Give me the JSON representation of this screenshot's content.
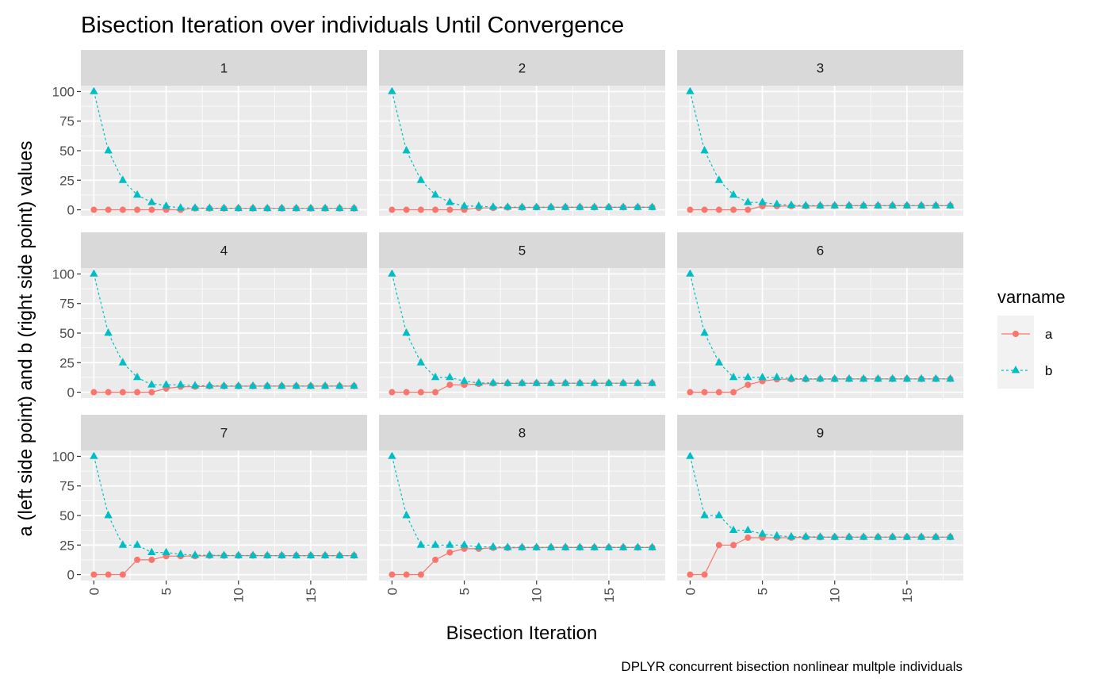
{
  "chart_data": {
    "type": "line",
    "title": "Bisection Iteration over individuals Until Convergence",
    "xlabel": "Bisection Iteration",
    "ylabel": "a (left side point) and b (right side point) values",
    "caption": "DPLYR concurrent bisection nonlinear multple individuals",
    "xlim": [
      -0.9,
      18.9
    ],
    "ylim": [
      -5,
      105
    ],
    "x_ticks": [
      0,
      5,
      10,
      15
    ],
    "y_ticks": [
      0,
      25,
      50,
      75,
      100
    ],
    "x": [
      0,
      1,
      2,
      3,
      4,
      5,
      6,
      7,
      8,
      9,
      10,
      11,
      12,
      13,
      14,
      15,
      16,
      17,
      18
    ],
    "legend": {
      "title": "varname",
      "position": "right",
      "entries": [
        {
          "label": "a",
          "color": "#F8766D",
          "marker": "circle",
          "line": "solid"
        },
        {
          "label": "b",
          "color": "#00BFC4",
          "marker": "triangle",
          "line": "dashed"
        }
      ]
    },
    "grid": true,
    "facets": [
      {
        "label": "1",
        "series": [
          {
            "name": "a",
            "values": [
              0,
              0,
              0,
              0,
              0,
              0,
              0,
              1.2,
              1.2,
              1.2,
              1.2,
              1.2,
              1.2,
              1.2,
              1.2,
              1.2,
              1.2,
              1.2,
              1.2
            ]
          },
          {
            "name": "b",
            "values": [
              100,
              50,
              25,
              12.5,
              6.25,
              3.13,
              1.56,
              1.56,
              1.4,
              1.3,
              1.25,
              1.22,
              1.2,
              1.2,
              1.2,
              1.2,
              1.2,
              1.2,
              1.2
            ]
          }
        ]
      },
      {
        "label": "2",
        "series": [
          {
            "name": "a",
            "values": [
              0,
              0,
              0,
              0,
              0,
              0,
              1.56,
              1.56,
              1.95,
              1.95,
              2.05,
              2.1,
              2.12,
              2.13,
              2.13,
              2.13,
              2.13,
              2.13,
              2.13
            ]
          },
          {
            "name": "b",
            "values": [
              100,
              50,
              25,
              12.5,
              6.25,
              3.13,
              3.13,
              2.34,
              2.34,
              2.15,
              2.15,
              2.15,
              2.15,
              2.15,
              2.14,
              2.14,
              2.14,
              2.14,
              2.14
            ]
          }
        ]
      },
      {
        "label": "3",
        "series": [
          {
            "name": "a",
            "values": [
              0,
              0,
              0,
              0,
              0,
              3.13,
              3.13,
              3.13,
              3.13,
              3.32,
              3.42,
              3.47,
              3.49,
              3.49,
              3.49,
              3.49,
              3.49,
              3.49,
              3.49
            ]
          },
          {
            "name": "b",
            "values": [
              100,
              50,
              25,
              12.5,
              6.25,
              6.25,
              4.69,
              3.91,
              3.52,
              3.52,
              3.52,
              3.52,
              3.52,
              3.5,
              3.5,
              3.5,
              3.5,
              3.5,
              3.5
            ]
          }
        ]
      },
      {
        "label": "4",
        "series": [
          {
            "name": "a",
            "values": [
              0,
              0,
              0,
              0,
              0,
              3.13,
              4.69,
              4.69,
              5.08,
              5.08,
              5.08,
              5.13,
              5.15,
              5.16,
              5.16,
              5.16,
              5.16,
              5.16,
              5.16
            ]
          },
          {
            "name": "b",
            "values": [
              100,
              50,
              25,
              12.5,
              6.25,
              6.25,
              6.25,
              5.47,
              5.47,
              5.27,
              5.18,
              5.18,
              5.18,
              5.18,
              5.17,
              5.17,
              5.17,
              5.17,
              5.17
            ]
          }
        ]
      },
      {
        "label": "5",
        "series": [
          {
            "name": "a",
            "values": [
              0,
              0,
              0,
              0,
              6.25,
              6.25,
              7.03,
              7.42,
              7.42,
              7.52,
              7.57,
              7.59,
              7.59,
              7.6,
              7.6,
              7.6,
              7.6,
              7.6,
              7.6
            ]
          },
          {
            "name": "b",
            "values": [
              100,
              50,
              25,
              12.5,
              12.5,
              9.38,
              7.81,
              7.81,
              7.62,
              7.62,
              7.62,
              7.62,
              7.61,
              7.61,
              7.61,
              7.61,
              7.61,
              7.61,
              7.61
            ]
          }
        ]
      },
      {
        "label": "6",
        "series": [
          {
            "name": "a",
            "values": [
              0,
              0,
              0,
              0,
              6.25,
              9.38,
              10.94,
              10.94,
              10.94,
              11.13,
              11.13,
              11.18,
              11.2,
              11.21,
              11.21,
              11.21,
              11.21,
              11.21,
              11.21
            ]
          },
          {
            "name": "b",
            "values": [
              100,
              50,
              25,
              12.5,
              12.5,
              12.5,
              12.5,
              11.72,
              11.33,
              11.33,
              11.23,
              11.23,
              11.23,
              11.22,
              11.22,
              11.22,
              11.22,
              11.22,
              11.22
            ]
          }
        ]
      },
      {
        "label": "7",
        "series": [
          {
            "name": "a",
            "values": [
              0,
              0,
              0,
              12.5,
              12.5,
              15.63,
              15.63,
              15.63,
              16.02,
              16.02,
              16.02,
              16.06,
              16.06,
              16.07,
              16.07,
              16.07,
              16.07,
              16.07,
              16.07
            ]
          },
          {
            "name": "b",
            "values": [
              100,
              50,
              25,
              25,
              18.75,
              18.75,
              17.19,
              16.41,
              16.41,
              16.21,
              16.11,
              16.11,
              16.09,
              16.08,
              16.08,
              16.08,
              16.08,
              16.08,
              16.08
            ]
          }
        ]
      },
      {
        "label": "8",
        "series": [
          {
            "name": "a",
            "values": [
              0,
              0,
              0,
              12.5,
              18.75,
              21.88,
              21.88,
              22.66,
              22.66,
              22.85,
              22.85,
              22.9,
              22.92,
              22.92,
              22.92,
              22.92,
              22.92,
              22.92,
              22.92
            ]
          },
          {
            "name": "b",
            "values": [
              100,
              50,
              25,
              25,
              25,
              25,
              23.44,
              23.44,
              23.05,
              23.05,
              22.95,
              22.95,
              22.95,
              22.93,
              22.93,
              22.93,
              22.93,
              22.93,
              22.93
            ]
          }
        ]
      },
      {
        "label": "9",
        "series": [
          {
            "name": "a",
            "values": [
              0,
              0,
              25,
              25,
              31.25,
              31.25,
              31.25,
              31.25,
              31.64,
              31.64,
              31.64,
              31.69,
              31.71,
              31.72,
              31.72,
              31.72,
              31.72,
              31.72,
              31.72
            ]
          },
          {
            "name": "b",
            "values": [
              100,
              50,
              50,
              37.5,
              37.5,
              34.38,
              32.81,
              32.03,
              32.03,
              31.84,
              31.74,
              31.74,
              31.74,
              31.73,
              31.73,
              31.73,
              31.73,
              31.73,
              31.73
            ]
          }
        ]
      }
    ]
  }
}
